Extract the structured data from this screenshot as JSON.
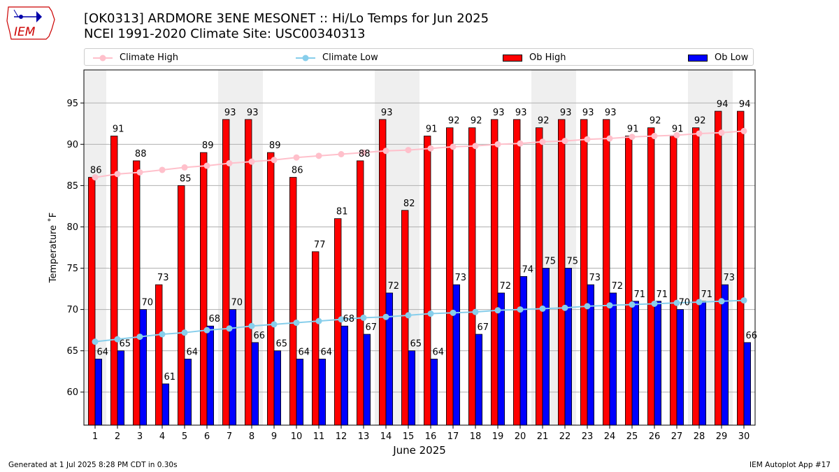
{
  "logo": {
    "text": "IEM"
  },
  "header": {
    "title_line1": "[OK0313] ARDMORE 3ENE MESONET :: Hi/Lo Temps for Jun 2025",
    "title_line2": "NCEI 1991-2020 Climate Site: USC00340313"
  },
  "legend": {
    "climate_high": "Climate High",
    "climate_low": "Climate Low",
    "ob_high": "Ob High",
    "ob_low": "Ob Low"
  },
  "footer": {
    "generated": "Generated at 1 Jul 2025 8:28 PM CDT in 0.30s",
    "app": "IEM Autoplot App #17"
  },
  "chart_data": {
    "type": "bar",
    "xlabel": "June 2025",
    "ylabel": "Temperature ˚F",
    "ylim": [
      56,
      99
    ],
    "yticks": [
      60,
      65,
      70,
      75,
      80,
      85,
      90,
      95
    ],
    "grid": "horizontal",
    "legend_placement": "top",
    "categories": [
      "1",
      "2",
      "3",
      "4",
      "5",
      "6",
      "7",
      "8",
      "9",
      "10",
      "11",
      "12",
      "13",
      "14",
      "15",
      "16",
      "17",
      "18",
      "19",
      "20",
      "21",
      "22",
      "23",
      "24",
      "25",
      "26",
      "27",
      "28",
      "29",
      "30"
    ],
    "weekend_days": [
      1,
      7,
      8,
      14,
      15,
      21,
      22,
      28,
      29
    ],
    "series": [
      {
        "name": "Ob High",
        "type": "bar",
        "color": "#ff0000",
        "values": [
          86,
          91,
          88,
          73,
          85,
          89,
          93,
          93,
          89,
          86,
          77,
          81,
          88,
          93,
          82,
          91,
          92,
          92,
          93,
          93,
          92,
          93,
          93,
          93,
          91,
          92,
          91,
          92,
          94,
          94
        ]
      },
      {
        "name": "Ob Low",
        "type": "bar",
        "color": "#0000ff",
        "values": [
          64,
          65,
          70,
          61,
          64,
          68,
          70,
          66,
          65,
          64,
          64,
          68,
          67,
          72,
          65,
          64,
          73,
          67,
          72,
          74,
          75,
          75,
          73,
          72,
          71,
          71,
          70,
          71,
          73,
          66
        ]
      },
      {
        "name": "Climate High",
        "type": "line",
        "color": "#ffc0cb",
        "values": [
          86.0,
          86.4,
          86.6,
          86.9,
          87.2,
          87.4,
          87.7,
          87.9,
          88.1,
          88.4,
          88.6,
          88.8,
          89.0,
          89.2,
          89.3,
          89.5,
          89.7,
          89.8,
          90.0,
          90.1,
          90.3,
          90.4,
          90.6,
          90.7,
          90.9,
          91.0,
          91.1,
          91.3,
          91.4,
          91.6
        ]
      },
      {
        "name": "Climate Low",
        "type": "line",
        "color": "#87ceeb",
        "values": [
          66.1,
          66.4,
          66.7,
          67.0,
          67.2,
          67.5,
          67.7,
          68.0,
          68.2,
          68.4,
          68.6,
          68.8,
          69.0,
          69.1,
          69.3,
          69.5,
          69.6,
          69.7,
          69.9,
          70.0,
          70.1,
          70.2,
          70.4,
          70.5,
          70.6,
          70.7,
          70.8,
          70.9,
          71.0,
          71.1
        ]
      }
    ]
  }
}
